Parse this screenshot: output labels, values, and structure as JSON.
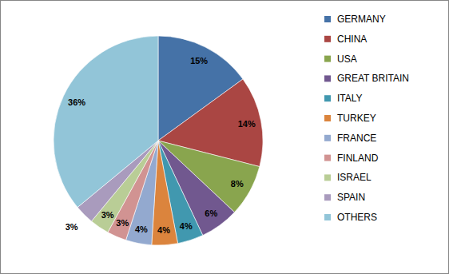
{
  "chart_data": {
    "type": "pie",
    "categories": [
      "GERMANY",
      "CHINA",
      "USA",
      "GREAT BRITAIN",
      "ITALY",
      "TURKEY",
      "FRANCE",
      "FINLAND",
      "ISRAEL",
      "SPAIN",
      "OTHERS"
    ],
    "values": [
      15,
      14,
      8,
      6,
      4,
      4,
      4,
      3,
      3,
      3,
      36
    ],
    "value_labels": [
      "15%",
      "14%",
      "8%",
      "6%",
      "4%",
      "4%",
      "4%",
      "3%",
      "3%",
      "3%",
      "36%"
    ],
    "colors": [
      "#4572a7",
      "#aa4643",
      "#89a54e",
      "#71588f",
      "#4198af",
      "#db843d",
      "#93a9cf",
      "#d19392",
      "#b9cd96",
      "#a99bbd",
      "#92c5d8"
    ],
    "data_labels": true,
    "legend": "right"
  }
}
